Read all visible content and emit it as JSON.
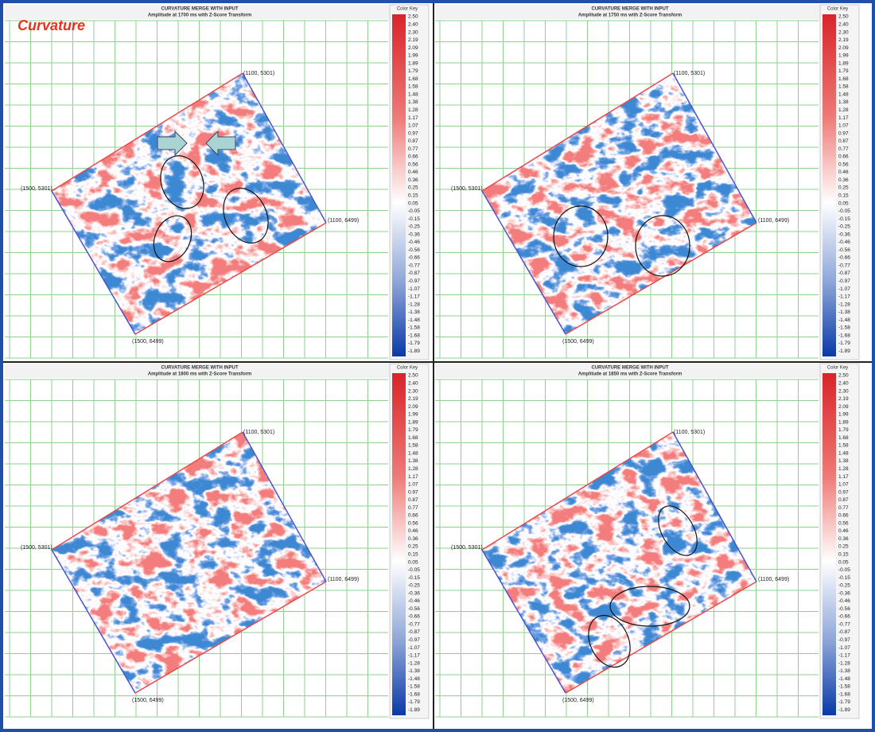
{
  "annotation": "Curvature",
  "panels": [
    {
      "title": "CURVATURE MERGE WITH INPUT",
      "subtitle": "Amplitude at 1700 ms with Z-Score Transform"
    },
    {
      "title": "CURVATURE MERGE WITH INPUT",
      "subtitle": "Amplitude at 1750 ms with Z-Score Transform"
    },
    {
      "title": "CURVATURE MERGE WITH INPUT",
      "subtitle": "Amplitude at 1800 ms with Z-Score Transform"
    },
    {
      "title": "CURVATURE MERGE WITH INPUT",
      "subtitle": "Amplitude at 1850 ms with Z-Score Transform"
    }
  ],
  "corners": {
    "top": "(1100, 5301)",
    "left": "(1500, 5301)",
    "right": "(1100, 6499)",
    "bottom": "(1500, 6499)"
  },
  "color_key": {
    "title": "Color Key",
    "labels": [
      "2.50",
      "2.40",
      "2.30",
      "2.19",
      "2.09",
      "1.99",
      "1.89",
      "1.79",
      "1.68",
      "1.58",
      "1.48",
      "1.38",
      "1.28",
      "1.17",
      "1.07",
      "0.97",
      "0.87",
      "0.77",
      "0.66",
      "0.56",
      "0.46",
      "0.36",
      "0.25",
      "0.15",
      "0.05",
      "-0.05",
      "-0.15",
      "-0.25",
      "-0.36",
      "-0.46",
      "-0.56",
      "-0.66",
      "-0.77",
      "-0.87",
      "-0.97",
      "-1.07",
      "-1.17",
      "-1.28",
      "-1.38",
      "-1.48",
      "-1.58",
      "-1.68",
      "-1.79",
      "-1.89"
    ]
  }
}
